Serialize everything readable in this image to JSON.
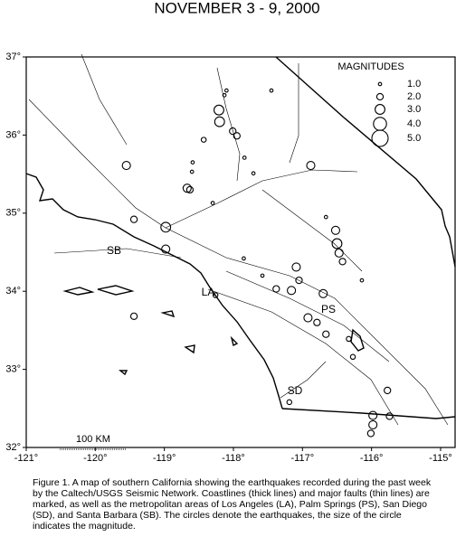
{
  "chart_data": {
    "type": "scatter",
    "title": "NOVEMBER 3 - 9, 2000",
    "xlim": [
      -121,
      -114.79
    ],
    "ylim": [
      32,
      37
    ],
    "xticks": [
      {
        "value": -121,
        "label": "-121°"
      },
      {
        "value": -120,
        "label": "-120°"
      },
      {
        "value": -119,
        "label": "-119°"
      },
      {
        "value": -118,
        "label": "-118°"
      },
      {
        "value": -117,
        "label": "-117°"
      },
      {
        "value": -116,
        "label": "-116°"
      },
      {
        "value": -115,
        "label": "-115°"
      }
    ],
    "yticks": [
      {
        "value": 32,
        "label": "32°"
      },
      {
        "value": 33,
        "label": "33°"
      },
      {
        "value": 34,
        "label": "34°"
      },
      {
        "value": 35,
        "label": "35°"
      },
      {
        "value": 36,
        "label": "36°"
      },
      {
        "value": 37,
        "label": "37°"
      }
    ],
    "x": [
      -118.21,
      -118.2,
      -118.01,
      -117.95,
      -118.13,
      -119.55,
      -116.88,
      -118.67,
      -118.63,
      -119.44,
      -118.98,
      -118.98,
      -116.52,
      -116.5,
      -116.47,
      -116.42,
      -117.09,
      -117.05,
      -117.16,
      -117.38,
      -116.7,
      -116.92,
      -116.79,
      -116.66,
      -116.33,
      -119.44,
      -118.26,
      -116.14,
      -115.98,
      -115.98,
      -116.01,
      -115.74,
      -115.77,
      -117.19,
      -117.58,
      -117.85,
      -118.59,
      -118.6,
      -118.43,
      -117.84,
      -118.3,
      -116.27,
      -117.45,
      -118.1,
      -117.71,
      -116.66
    ],
    "y": [
      36.32,
      36.17,
      36.05,
      35.99,
      36.51,
      35.61,
      35.61,
      35.32,
      35.3,
      34.92,
      34.82,
      34.54,
      34.78,
      34.61,
      34.49,
      34.38,
      34.31,
      34.14,
      34.01,
      34.03,
      33.97,
      33.66,
      33.6,
      33.45,
      33.39,
      33.68,
      33.95,
      34.14,
      32.41,
      32.29,
      32.18,
      32.4,
      32.73,
      32.58,
      34.2,
      34.42,
      35.65,
      35.53,
      35.94,
      35.71,
      35.13,
      33.16,
      36.57,
      36.57,
      35.51,
      34.95
    ],
    "sizes": [
      3,
      3,
      2,
      2,
      1,
      2.5,
      2.5,
      2.5,
      2,
      2,
      3,
      2.5,
      2.5,
      3,
      2.5,
      2,
      2.5,
      2,
      2.5,
      2,
      2.5,
      2.5,
      2,
      2,
      1.5,
      2,
      1.5,
      1,
      2.5,
      2.5,
      2,
      2,
      2,
      1.5,
      1,
      1,
      1,
      1,
      1.5,
      1,
      1,
      1.5,
      1,
      1,
      1,
      1
    ],
    "legend_title": "MAGNITUDES",
    "size_legend": [
      {
        "value": 1,
        "label": "1.0"
      },
      {
        "value": 2,
        "label": "2.0"
      },
      {
        "value": 3,
        "label": "3.0"
      },
      {
        "value": 4,
        "label": "4.0"
      },
      {
        "value": 5,
        "label": "5.0"
      }
    ],
    "annotations": [
      "SB",
      "LA",
      "PS",
      "SD"
    ],
    "scale_label": "100 KM",
    "caption": "Figure 1. A map of southern California showing the earthquakes recorded during the past week by the Caltech/USGS Seismic Network.  Coastlines (thick lines) and major faults (thin lines) are marked, as well as the metropolitan areas of Los Angeles (LA), Palm Springs (PS), San Diego (SD), and Santa Barbara (SB).  The circles denote the earthquakes, the size of the circle indicates the magnitude."
  }
}
